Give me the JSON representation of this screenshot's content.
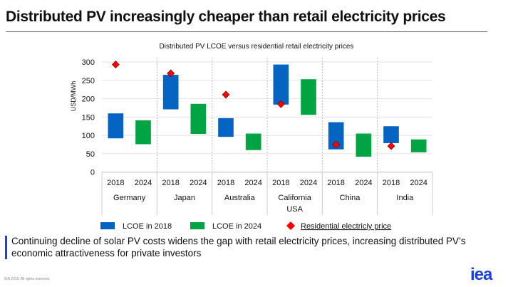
{
  "header": {
    "title": "Distributed PV increasingly cheaper than retail electricity prices"
  },
  "chart_data": {
    "type": "bar",
    "subtype": "floating-range with markers",
    "title": "Distributed PV LCOE versus residential retail electricity prices",
    "ylabel": "USD/MWh",
    "ylim": [
      0,
      300
    ],
    "yticks": [
      0,
      50,
      100,
      150,
      200,
      250,
      300
    ],
    "grid": true,
    "legend_position": "bottom",
    "categories": [
      "Germany",
      "Japan",
      "Australia",
      "California USA",
      "China",
      "India"
    ],
    "category_lines": [
      [
        "Germany"
      ],
      [
        "Japan"
      ],
      [
        "Australia"
      ],
      [
        "California",
        "USA"
      ],
      [
        "China"
      ],
      [
        "India"
      ]
    ],
    "sub_categories": [
      "2018",
      "2024"
    ],
    "series": [
      {
        "name": "LCOE in 2018",
        "color": "#0563c1",
        "low": [
          92,
          171,
          96,
          184,
          62,
          79
        ],
        "high": [
          160,
          265,
          147,
          293,
          136,
          125
        ]
      },
      {
        "name": "LCOE in 2024",
        "color": "#00a443",
        "low": [
          76,
          104,
          60,
          156,
          42,
          54
        ],
        "high": [
          141,
          186,
          105,
          253,
          105,
          89
        ]
      },
      {
        "name": "Residential  electriciy price",
        "color": "#ff0000",
        "marker": "diamond",
        "values": [
          293,
          269,
          211,
          185,
          75,
          71
        ]
      }
    ]
  },
  "caption": "Continuing decline of solar PV costs widens the gap with retail electricity prices, increasing distributed PV’s economic attractiveness for private investors",
  "footer": {
    "copyright": "IEA 2019. All rights reserved.",
    "logo": "iea"
  }
}
